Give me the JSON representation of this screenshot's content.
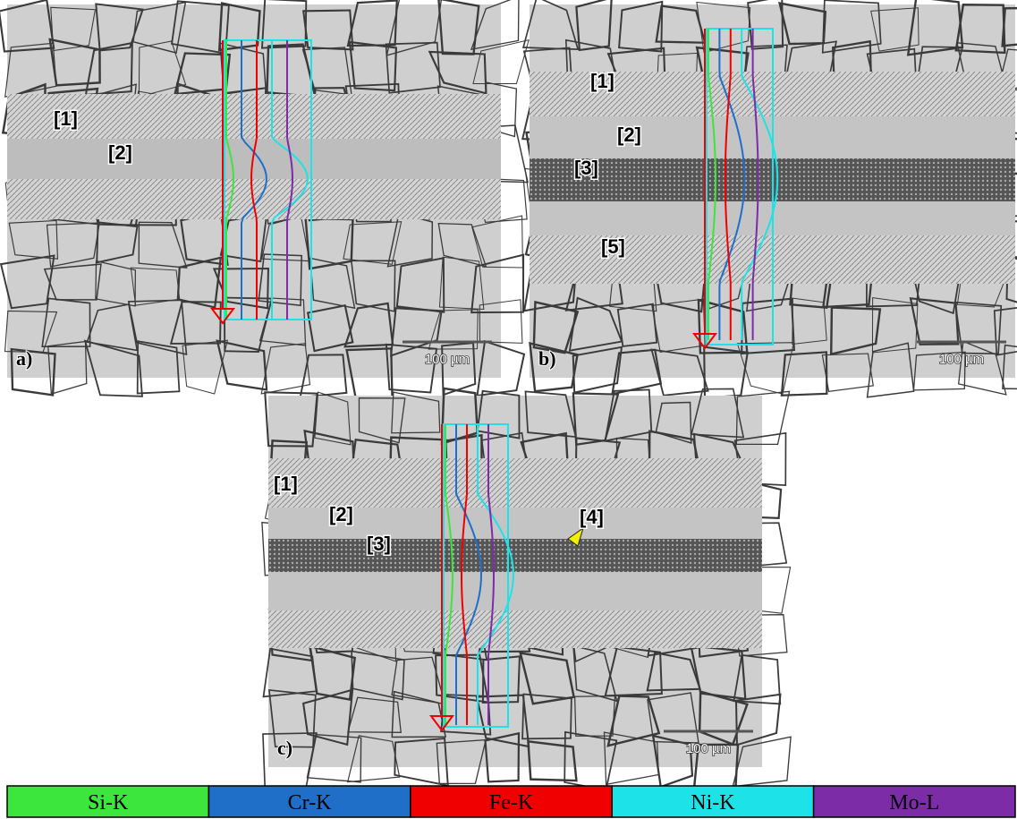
{
  "panels": [
    {
      "label": "a)",
      "regions": [
        "[1]",
        "[2]"
      ],
      "scale_bar": "100 µm"
    },
    {
      "label": "b)",
      "regions": [
        "[1]",
        "[2]",
        "[3]",
        "[5]"
      ],
      "scale_bar": "100 µm"
    },
    {
      "label": "c)",
      "regions": [
        "[1]",
        "[2]",
        "[3]",
        "[4]"
      ],
      "scale_bar": "100 µm"
    }
  ],
  "legend": [
    {
      "name": "Si-K",
      "color": "#3de63d"
    },
    {
      "name": "Cr-K",
      "color": "#1f6fc9"
    },
    {
      "name": "Fe-K",
      "color": "#f00000"
    },
    {
      "name": "Ni-K",
      "color": "#1de3e8"
    },
    {
      "name": "Mo-L",
      "color": "#7b2ca6"
    }
  ]
}
